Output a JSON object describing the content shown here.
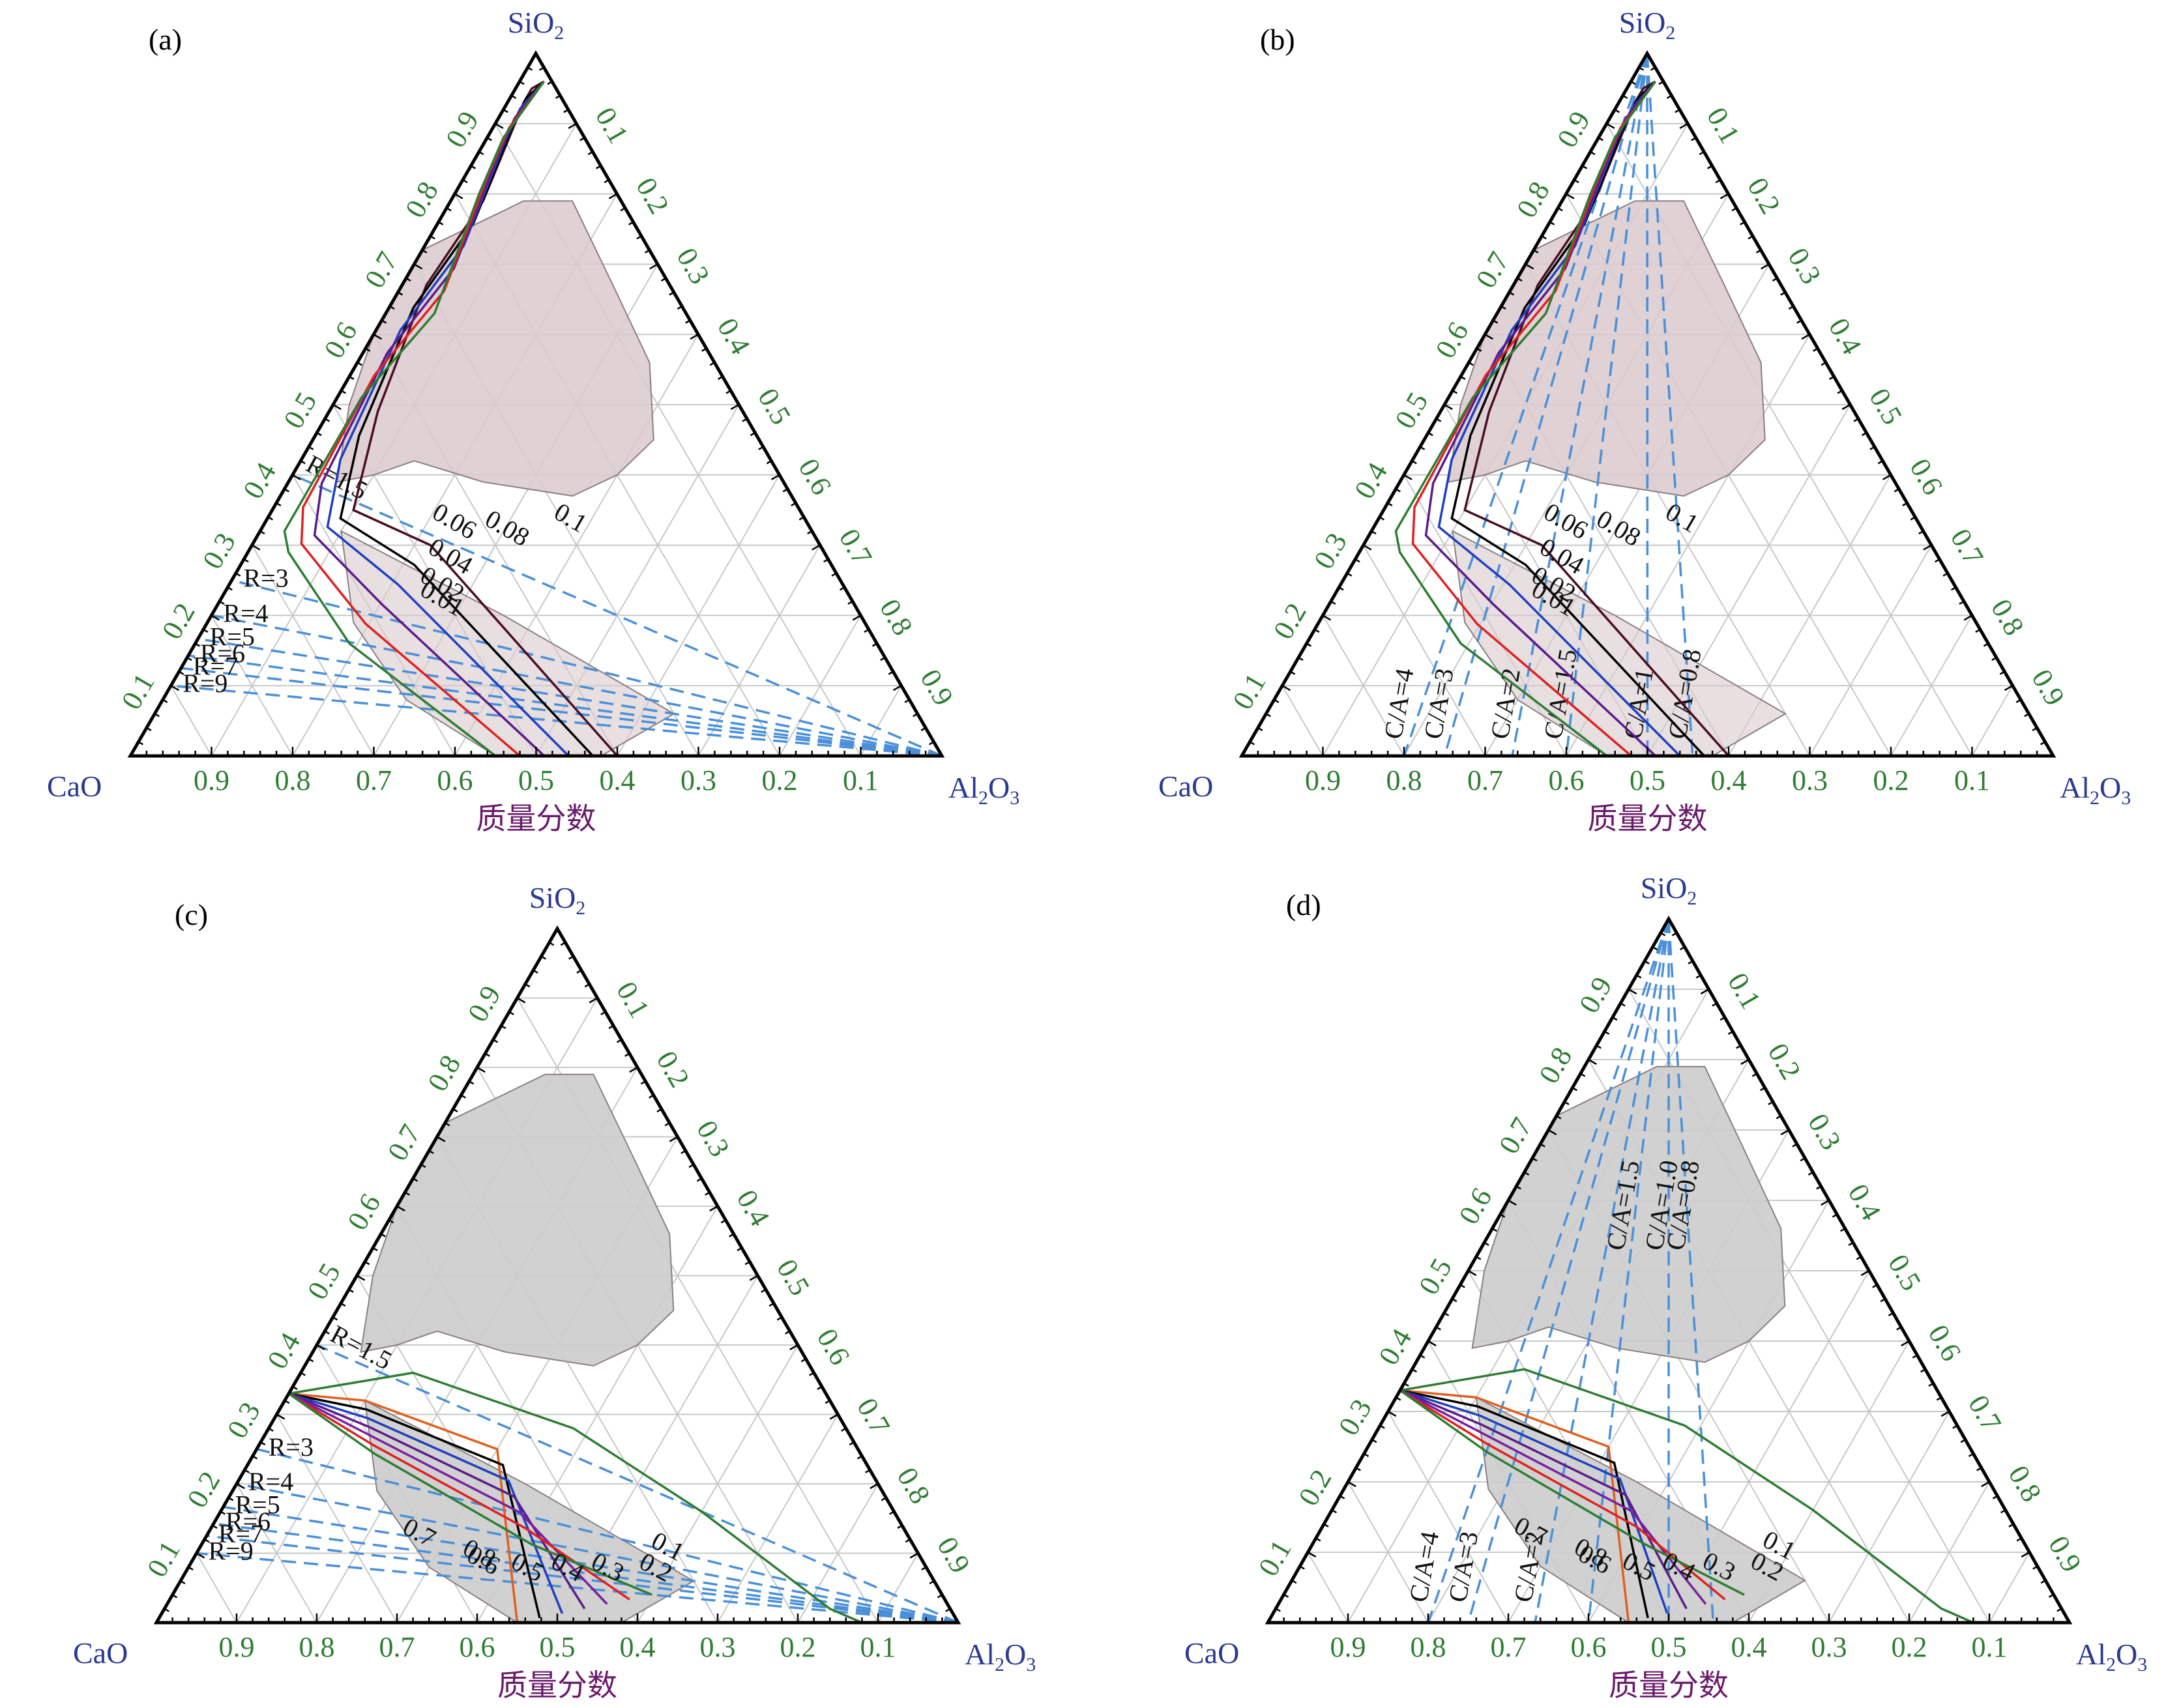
{
  "panels": [
    {
      "label": "(a)",
      "apex_top": "SiO",
      "apex_top_sub": "2",
      "apex_left": "CaO",
      "apex_right": "Al",
      "apex_right_sub1": "2",
      "apex_right_mid": "O",
      "apex_right_sub2": "3",
      "xlabel": "质量分数",
      "bottom_ticks": [
        "0.9",
        "0.8",
        "0.7",
        "0.6",
        "0.5",
        "0.4",
        "0.3",
        "0.2",
        "0.1"
      ],
      "left_ticks": [
        "0.1",
        "0.2",
        "0.3",
        "0.4",
        "0.5",
        "0.6",
        "0.7",
        "0.8",
        "0.9"
      ],
      "right_ticks": [
        "0.1",
        "0.2",
        "0.3",
        "0.4",
        "0.5",
        "0.6",
        "0.7",
        "0.8",
        "0.9"
      ],
      "region_color": "#d9c9cd",
      "dashed_from": "Al2O3",
      "dashed_labels": [
        "R=1.5",
        "R=3",
        "R=4",
        "R=5",
        "R=6",
        "R=7",
        "R=9"
      ],
      "curve_labels": [
        "0.1",
        "0.08",
        "0.06",
        "0.04",
        "0.02",
        "0.01"
      ],
      "curve_colors": [
        "#4a0d22",
        "#000000",
        "#1f3fbf",
        "#5b1b8a",
        "#e02020",
        "#2e7d32"
      ]
    },
    {
      "label": "(b)",
      "apex_top": "SiO",
      "apex_top_sub": "2",
      "apex_left": "CaO",
      "apex_right": "Al",
      "apex_right_sub1": "2",
      "apex_right_mid": "O",
      "apex_right_sub2": "3",
      "xlabel": "质量分数",
      "bottom_ticks": [
        "0.9",
        "0.8",
        "0.7",
        "0.6",
        "0.5",
        "0.4",
        "0.3",
        "0.2",
        "0.1"
      ],
      "left_ticks": [
        "0.1",
        "0.2",
        "0.3",
        "0.4",
        "0.5",
        "0.6",
        "0.7",
        "0.8",
        "0.9"
      ],
      "right_ticks": [
        "0.1",
        "0.2",
        "0.3",
        "0.4",
        "0.5",
        "0.6",
        "0.7",
        "0.8",
        "0.9"
      ],
      "region_color": "#d9c9cd",
      "dashed_from": "SiO2",
      "dashed_labels": [
        "C/A=4",
        "C/A=3",
        "C/A=2",
        "C/A=1.5",
        "C/A=1",
        "C/A=0.8"
      ],
      "curve_labels": [
        "0.1",
        "0.08",
        "0.06",
        "0.04",
        "0.02",
        "0.01"
      ],
      "curve_colors": [
        "#4a0d22",
        "#000000",
        "#1f3fbf",
        "#5b1b8a",
        "#e02020",
        "#2e7d32"
      ]
    },
    {
      "label": "(c)",
      "apex_top": "SiO",
      "apex_top_sub": "2",
      "apex_left": "CaO",
      "apex_right": "Al",
      "apex_right_sub1": "2",
      "apex_right_mid": "O",
      "apex_right_sub2": "3",
      "xlabel": "质量分数",
      "bottom_ticks": [
        "0.9",
        "0.8",
        "0.7",
        "0.6",
        "0.5",
        "0.4",
        "0.3",
        "0.2",
        "0.1"
      ],
      "left_ticks": [
        "0.1",
        "0.2",
        "0.3",
        "0.4",
        "0.5",
        "0.6",
        "0.7",
        "0.8",
        "0.9"
      ],
      "right_ticks": [
        "0.1",
        "0.2",
        "0.3",
        "0.4",
        "0.5",
        "0.6",
        "0.7",
        "0.8",
        "0.9"
      ],
      "region_color": "#cccccc",
      "dashed_from": "Al2O3",
      "dashed_labels": [
        "R=1.5",
        "R=3",
        "R=4",
        "R=5",
        "R=6",
        "R=7",
        "R=9"
      ],
      "curve_labels": [
        "0.8",
        "0.7",
        "0.6",
        "0.5",
        "0.4",
        "0.3",
        "0.2",
        "0.1"
      ],
      "curve_colors": [
        "#e06020",
        "#000000",
        "#1f3fbf",
        "#5b1b8a",
        "#7a1fa0",
        "#e02020",
        "#2e7d32",
        "#2e7d32"
      ]
    },
    {
      "label": "(d)",
      "apex_top": "SiO",
      "apex_top_sub": "2",
      "apex_left": "CaO",
      "apex_right": "Al",
      "apex_right_sub1": "2",
      "apex_right_mid": "O",
      "apex_right_sub2": "3",
      "xlabel": "质量分数",
      "bottom_ticks": [
        "0.9",
        "0.8",
        "0.7",
        "0.6",
        "0.5",
        "0.4",
        "0.3",
        "0.2",
        "0.1"
      ],
      "left_ticks": [
        "0.1",
        "0.2",
        "0.3",
        "0.4",
        "0.5",
        "0.6",
        "0.7",
        "0.8",
        "0.9"
      ],
      "right_ticks": [
        "0.1",
        "0.2",
        "0.3",
        "0.4",
        "0.5",
        "0.6",
        "0.7",
        "0.8",
        "0.9"
      ],
      "region_color": "#cccccc",
      "dashed_from": "SiO2",
      "dashed_labels": [
        "C/A=4",
        "C/A=3",
        "C/A=2",
        "C/A=1.5",
        "C/A=1.0",
        "C/A=0.8"
      ],
      "curve_labels": [
        "0.8",
        "0.7",
        "0.6",
        "0.5",
        "0.4",
        "0.3",
        "0.2",
        "0.1"
      ],
      "curve_colors": [
        "#e06020",
        "#000000",
        "#1f3fbf",
        "#5b1b8a",
        "#7a1fa0",
        "#e02020",
        "#2e7d32",
        "#2e7d32"
      ]
    }
  ]
}
